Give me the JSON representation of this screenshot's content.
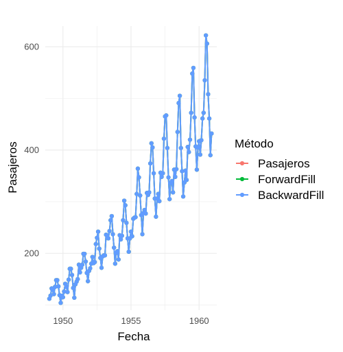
{
  "chart_data": {
    "type": "line",
    "xlabel": "Fecha",
    "ylabel": "Pasajeros",
    "xlim": [
      1948.7,
      1961.3
    ],
    "ylim": [
      90,
      640
    ],
    "x_ticks": [
      1950,
      1955,
      1960
    ],
    "y_ticks": [
      200,
      400,
      600
    ],
    "grid": true,
    "legend": {
      "title": "Método",
      "placement": "right"
    },
    "colors": {
      "Pasajeros": "#F8766D",
      "ForwardFill": "#00BA38",
      "BackwardFill": "#619CFF",
      "grid": "#ebebeb"
    },
    "x": [
      1949.0,
      1949.083,
      1949.167,
      1949.25,
      1949.333,
      1949.417,
      1949.5,
      1949.583,
      1949.667,
      1949.75,
      1949.833,
      1949.917,
      1950.0,
      1950.083,
      1950.167,
      1950.25,
      1950.333,
      1950.417,
      1950.5,
      1950.583,
      1950.667,
      1950.75,
      1950.833,
      1950.917,
      1951.0,
      1951.083,
      1951.167,
      1951.25,
      1951.333,
      1951.417,
      1951.5,
      1951.583,
      1951.667,
      1951.75,
      1951.833,
      1951.917,
      1952.0,
      1952.083,
      1952.167,
      1952.25,
      1952.333,
      1952.417,
      1952.5,
      1952.583,
      1952.667,
      1952.75,
      1952.833,
      1952.917,
      1953.0,
      1953.083,
      1953.167,
      1953.25,
      1953.333,
      1953.417,
      1953.5,
      1953.583,
      1953.667,
      1953.75,
      1953.833,
      1953.917,
      1954.0,
      1954.083,
      1954.167,
      1954.25,
      1954.333,
      1954.417,
      1954.5,
      1954.583,
      1954.667,
      1954.75,
      1954.833,
      1954.917,
      1955.0,
      1955.083,
      1955.167,
      1955.25,
      1955.333,
      1955.417,
      1955.5,
      1955.583,
      1955.667,
      1955.75,
      1955.833,
      1955.917,
      1956.0,
      1956.083,
      1956.167,
      1956.25,
      1956.333,
      1956.417,
      1956.5,
      1956.583,
      1956.667,
      1956.75,
      1956.833,
      1956.917,
      1957.0,
      1957.083,
      1957.167,
      1957.25,
      1957.333,
      1957.417,
      1957.5,
      1957.583,
      1957.667,
      1957.75,
      1957.833,
      1957.917,
      1958.0,
      1958.083,
      1958.167,
      1958.25,
      1958.333,
      1958.417,
      1958.5,
      1958.583,
      1958.667,
      1958.75,
      1958.833,
      1958.917,
      1959.0,
      1959.083,
      1959.167,
      1959.25,
      1959.333,
      1959.417,
      1959.5,
      1959.583,
      1959.667,
      1959.75,
      1959.833,
      1959.917,
      1960.0,
      1960.083,
      1960.167,
      1960.25,
      1960.333,
      1960.417,
      1960.5,
      1960.583,
      1960.667,
      1960.75,
      1960.833,
      1960.917
    ],
    "series": [
      {
        "name": "Pasajeros",
        "values": [
          112,
          118,
          132,
          129,
          121,
          135,
          148,
          148,
          136,
          119,
          104,
          118,
          115,
          126,
          141,
          135,
          125,
          149,
          170,
          170,
          158,
          133,
          114,
          140,
          145,
          150,
          178,
          163,
          172,
          178,
          199,
          199,
          184,
          162,
          146,
          166,
          171,
          180,
          193,
          181,
          183,
          218,
          230,
          242,
          209,
          191,
          172,
          194,
          196,
          196,
          236,
          235,
          229,
          243,
          264,
          272,
          237,
          211,
          180,
          201,
          204,
          188,
          235,
          227,
          234,
          264,
          302,
          293,
          259,
          229,
          203,
          229,
          242,
          233,
          267,
          269,
          270,
          315,
          364,
          347,
          312,
          274,
          237,
          278,
          284,
          277,
          317,
          313,
          318,
          374,
          413,
          405,
          355,
          306,
          271,
          306,
          315,
          301,
          356,
          348,
          355,
          422,
          465,
          467,
          404,
          347,
          305,
          336,
          340,
          318,
          362,
          348,
          363,
          435,
          491,
          505,
          404,
          359,
          310,
          337,
          360,
          342,
          406,
          396,
          420,
          472,
          548,
          559,
          463,
          407,
          362,
          405,
          417,
          391,
          419,
          461,
          472,
          535,
          622,
          606,
          508,
          461,
          390,
          432
        ]
      },
      {
        "name": "ForwardFill",
        "values": [
          112,
          118,
          132,
          129,
          121,
          135,
          148,
          148,
          136,
          119,
          104,
          118,
          115,
          126,
          141,
          135,
          125,
          149,
          170,
          170,
          158,
          133,
          114,
          140,
          145,
          150,
          178,
          163,
          172,
          178,
          199,
          199,
          184,
          162,
          146,
          166,
          171,
          180,
          193,
          181,
          183,
          218,
          230,
          242,
          209,
          191,
          172,
          194,
          196,
          196,
          236,
          235,
          229,
          243,
          264,
          272,
          237,
          211,
          180,
          201,
          204,
          188,
          235,
          227,
          234,
          264,
          302,
          293,
          259,
          229,
          203,
          229,
          242,
          233,
          267,
          269,
          270,
          315,
          364,
          347,
          312,
          274,
          237,
          278,
          284,
          277,
          317,
          313,
          318,
          374,
          413,
          405,
          355,
          306,
          271,
          306,
          315,
          301,
          356,
          348,
          355,
          422,
          465,
          467,
          404,
          347,
          305,
          336,
          340,
          318,
          362,
          348,
          363,
          435,
          491,
          505,
          404,
          359,
          310,
          337,
          360,
          342,
          406,
          396,
          420,
          472,
          548,
          559,
          463,
          407,
          362,
          405,
          417,
          391,
          419,
          461,
          472,
          535,
          622,
          606,
          508,
          461,
          390,
          432
        ]
      },
      {
        "name": "BackwardFill",
        "values": [
          112,
          118,
          132,
          129,
          121,
          135,
          148,
          148,
          136,
          119,
          104,
          118,
          115,
          126,
          141,
          135,
          125,
          149,
          170,
          170,
          158,
          133,
          114,
          140,
          145,
          150,
          178,
          163,
          172,
          178,
          199,
          199,
          184,
          162,
          146,
          166,
          171,
          180,
          193,
          181,
          183,
          218,
          230,
          242,
          209,
          191,
          172,
          194,
          196,
          196,
          236,
          235,
          229,
          243,
          264,
          272,
          237,
          211,
          180,
          201,
          204,
          188,
          235,
          227,
          234,
          264,
          302,
          293,
          259,
          229,
          203,
          229,
          242,
          233,
          267,
          269,
          270,
          315,
          364,
          347,
          312,
          274,
          237,
          278,
          284,
          277,
          317,
          313,
          318,
          374,
          413,
          405,
          355,
          306,
          271,
          306,
          315,
          301,
          356,
          348,
          355,
          422,
          465,
          467,
          404,
          347,
          305,
          336,
          340,
          318,
          362,
          348,
          363,
          435,
          491,
          505,
          404,
          359,
          310,
          337,
          360,
          342,
          406,
          396,
          420,
          472,
          548,
          559,
          463,
          407,
          362,
          405,
          417,
          391,
          419,
          461,
          472,
          535,
          622,
          606,
          508,
          461,
          390,
          432
        ]
      }
    ]
  }
}
